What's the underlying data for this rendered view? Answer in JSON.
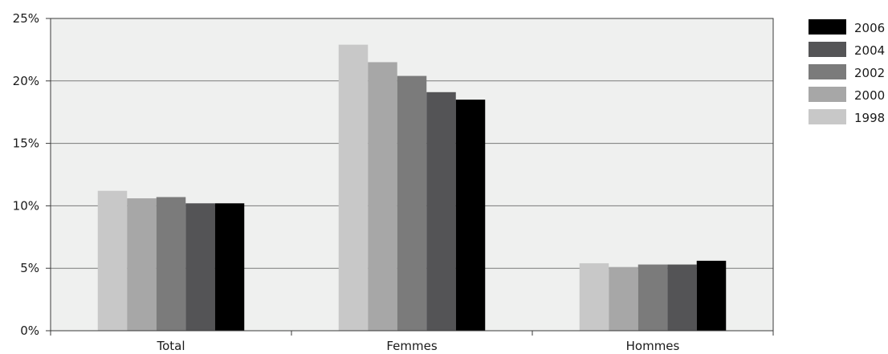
{
  "chart_data": {
    "type": "bar",
    "categories": [
      "Total",
      "Femmes",
      "Hommes"
    ],
    "series": [
      {
        "name": "1998",
        "color": "#c8c8c8",
        "values": [
          11.2,
          22.9,
          5.4
        ]
      },
      {
        "name": "2000",
        "color": "#a7a7a7",
        "values": [
          10.6,
          21.5,
          5.1
        ]
      },
      {
        "name": "2002",
        "color": "#7b7b7b",
        "values": [
          10.7,
          20.4,
          5.3
        ]
      },
      {
        "name": "2004",
        "color": "#545456",
        "values": [
          10.2,
          19.1,
          5.3
        ]
      },
      {
        "name": "2006",
        "color": "#000000",
        "values": [
          10.2,
          18.5,
          5.6
        ]
      }
    ],
    "ylim": [
      0,
      25
    ],
    "yticks": [
      0,
      5,
      10,
      15,
      20,
      25
    ],
    "ytick_labels": [
      "0%",
      "5%",
      "10%",
      "15%",
      "20%",
      "25%"
    ],
    "title": "",
    "xlabel": "",
    "ylabel": "",
    "grid": "horizontal",
    "plot_background": "#eff0ef",
    "legend": {
      "placement": "right",
      "order": [
        "2006",
        "2004",
        "2002",
        "2000",
        "1998"
      ]
    }
  }
}
